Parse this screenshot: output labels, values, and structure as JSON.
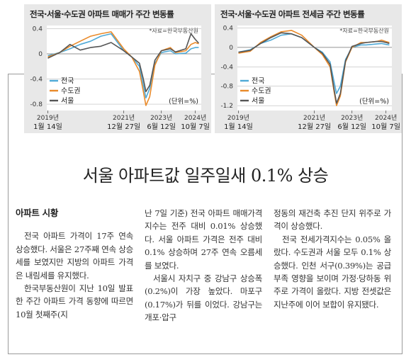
{
  "charts": [
    {
      "title": "전국·서울·수도권 아파트 매매가 주간 변동률",
      "source": "*자료=한국부동산원",
      "unit": "(단위=%)",
      "y_ticks": [
        "0.4",
        "0",
        "-0.4",
        "-0.8"
      ],
      "x_ticks": [
        {
          "year": "2019년",
          "date": "1월 14일"
        },
        {
          "year": "2021년",
          "date": "12월 27일"
        },
        {
          "year": "2023년",
          "date": "6월 12일"
        },
        {
          "year": "2024년",
          "date": "10월 7일"
        }
      ],
      "legend": [
        {
          "label": "전국",
          "color": "#4fa9d6"
        },
        {
          "label": "수도권",
          "color": "#e98a2a"
        },
        {
          "label": "서울",
          "color": "#555555"
        }
      ]
    },
    {
      "title": "전국·서울·수도권 아파트 전세금 주간 변동률",
      "source": "*자료=한국부동산원",
      "unit": "(단위=%)",
      "y_ticks": [
        "0.4",
        "0",
        "-0.4",
        "-0.8",
        "-1.2"
      ],
      "x_ticks": [
        {
          "year": "2019년",
          "date": "1월 14일"
        },
        {
          "year": "2021년",
          "date": "12월 27일"
        },
        {
          "year": "2023년",
          "date": "6월 12일"
        },
        {
          "year": "2024년",
          "date": "10월 7일"
        }
      ],
      "legend": [
        {
          "label": "전국",
          "color": "#4fa9d6"
        },
        {
          "label": "수도권",
          "color": "#e98a2a"
        },
        {
          "label": "서울",
          "color": "#555555"
        }
      ]
    }
  ],
  "chart_data": [
    {
      "type": "line",
      "title": "전국·서울·수도권 아파트 매매가 주간 변동률",
      "ylim": [
        -0.9,
        0.45
      ],
      "x": [
        2019.04,
        2019.5,
        2019.9,
        2020.3,
        2020.7,
        2021.1,
        2021.5,
        2021.99,
        2022.3,
        2022.6,
        2022.75,
        2022.85,
        2023.0,
        2023.2,
        2023.45,
        2023.8,
        2024.0,
        2024.4,
        2024.6,
        2024.77,
        2024.9
      ],
      "series": [
        {
          "name": "전국",
          "values": [
            -0.03,
            0.02,
            0.08,
            0.15,
            0.2,
            0.28,
            0.32,
            0.05,
            -0.05,
            -0.2,
            -0.5,
            -0.7,
            -0.55,
            -0.15,
            0.02,
            0.05,
            0.0,
            0.01,
            0.08,
            0.1,
            0.1
          ]
        },
        {
          "name": "수도권",
          "values": [
            -0.05,
            0.02,
            0.12,
            0.2,
            0.28,
            0.32,
            0.35,
            0.08,
            -0.05,
            -0.28,
            -0.6,
            -0.82,
            -0.68,
            -0.18,
            0.05,
            0.1,
            0.02,
            0.05,
            0.15,
            0.18,
            0.16
          ]
        },
        {
          "name": "서울",
          "values": [
            -0.07,
            0.02,
            0.15,
            0.06,
            0.1,
            0.12,
            0.18,
            0.05,
            -0.05,
            -0.15,
            -0.4,
            -0.6,
            -0.5,
            -0.1,
            0.05,
            0.08,
            0.03,
            0.08,
            0.32,
            0.23,
            0.17
          ]
        }
      ]
    },
    {
      "type": "line",
      "title": "전국·서울·수도권 아파트 전세금 주간 변동률",
      "ylim": [
        -1.3,
        0.45
      ],
      "x": [
        2019.04,
        2019.5,
        2019.9,
        2020.3,
        2020.7,
        2021.1,
        2021.5,
        2021.99,
        2022.3,
        2022.6,
        2022.75,
        2022.85,
        2023.0,
        2023.2,
        2023.45,
        2023.8,
        2024.0,
        2024.4,
        2024.6,
        2024.77,
        2024.9
      ],
      "series": [
        {
          "name": "전국",
          "values": [
            -0.1,
            -0.05,
            0.08,
            0.15,
            0.25,
            0.28,
            0.2,
            0.0,
            -0.1,
            -0.3,
            -0.7,
            -0.95,
            -0.8,
            -0.25,
            0.0,
            0.05,
            0.05,
            0.07,
            0.08,
            0.06,
            0.05
          ]
        },
        {
          "name": "수도권",
          "values": [
            -0.12,
            -0.08,
            0.1,
            0.22,
            0.32,
            0.35,
            0.25,
            0.0,
            -0.15,
            -0.4,
            -0.9,
            -1.2,
            -1.0,
            -0.3,
            0.0,
            0.1,
            0.1,
            0.12,
            0.15,
            0.12,
            0.1
          ]
        },
        {
          "name": "서울",
          "values": [
            -0.1,
            -0.06,
            0.08,
            0.2,
            0.3,
            0.28,
            0.2,
            0.0,
            -0.12,
            -0.35,
            -0.85,
            -1.15,
            -0.95,
            -0.28,
            0.02,
            0.08,
            0.1,
            0.12,
            0.12,
            0.1,
            0.08
          ]
        }
      ]
    }
  ],
  "headline": "서울 아파트값 일주일새 0.1% 상승",
  "article": {
    "section_head": "아파트 시황",
    "col1": [
      "전국 아파트 가격이 17주 연속 상승했다. 서울은 27주째 연속 상승세를 보였지만 지방의 아파트 가격은 내림세를 유지했다.",
      "한국부동산원이 지난 10일 발표한 주간 아파트 가격 동향에 따르면 10월 첫째주(지"
    ],
    "col2": [
      "난 7일 기준) 전국 아파트 매매가격지수는 전주 대비 0.01% 상승했다. 서울 아파트 가격은 전주 대비 0.1% 상승하며 27주 연속 오름세를 보였다.",
      "서울시 자치구 중 강남구 상승폭(0.2%)이 가장 높았다. 마포구(0.17%)가 뒤를 이었다. 강남구는 개포·압구"
    ],
    "col3": [
      "정동의 재건축 추진 단지 위주로 가격이 상승했다.",
      "전국 전세가격지수는 0.05% 올랐다. 수도권과 서울 모두 0.1% 상승했다. 인천 서구(0.39%)는 공급 부족 영향을 보이며 가정·당하동 위주로 가격이 올랐다. 지방 전셋값은 지난주에 이어 보합이 유지됐다."
    ]
  }
}
